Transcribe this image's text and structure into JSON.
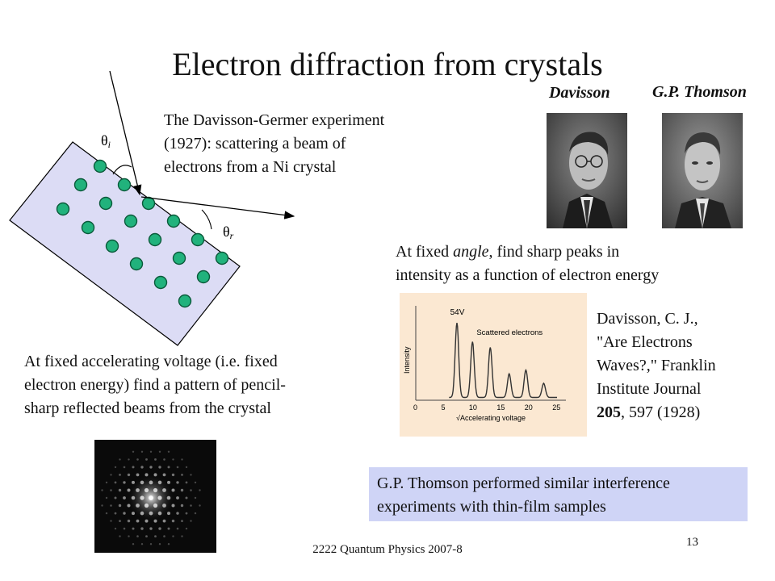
{
  "title": "Electron diffraction from crystals",
  "people": [
    {
      "name": "Davisson",
      "photo_icon": "davisson-portrait"
    },
    {
      "name": "G.P. Thomson",
      "photo_icon": "thomson-portrait"
    }
  ],
  "crystal_diagram": {
    "theta_i_label": "θ",
    "theta_i_sub": "i",
    "theta_r_label": "θ",
    "theta_r_sub": "r"
  },
  "texts": {
    "dg": [
      "The Davisson-Germer experiment",
      "(1927): scattering a beam of",
      "electrons from a Ni crystal"
    ],
    "voltage": [
      "At fixed accelerating voltage (i.e. fixed",
      "electron energy) find a pattern of pencil-",
      "sharp reflected beams from the crystal"
    ],
    "angle_pre": "At fixed ",
    "angle_italic": "angle",
    "angle_post": ", find sharp peaks in",
    "angle_line2": "intensity as a function of electron energy",
    "ref": {
      "line1": "Davisson, C. J.,",
      "line2": "\"Are Electrons",
      "line3": "Waves?,\" Franklin",
      "line4": "Institute Journal",
      "volume": "205",
      "rest": ", 597 (1928)"
    },
    "thomson": [
      "G.P. Thomson performed similar interference",
      "experiments with thin-film samples"
    ]
  },
  "chart_data": {
    "type": "line",
    "title": "",
    "xlabel": "√Accelerating voltage",
    "ylabel": "Intensity",
    "xlim": [
      0,
      27
    ],
    "ylim": [
      0,
      1
    ],
    "x_ticks": [
      "0",
      "5",
      "10",
      "15",
      "20",
      "25"
    ],
    "annotations": [
      {
        "text": "54V",
        "x": 7.35
      },
      {
        "text": "Scattered electrons",
        "x": 15
      }
    ],
    "series": [
      {
        "peaks": [
          {
            "x": 7.4,
            "y": 0.82
          },
          {
            "x": 10.2,
            "y": 0.62
          },
          {
            "x": 13.4,
            "y": 0.56
          },
          {
            "x": 16.8,
            "y": 0.28
          },
          {
            "x": 19.8,
            "y": 0.32
          },
          {
            "x": 23.0,
            "y": 0.18
          }
        ]
      }
    ]
  },
  "footer": "2222 Quantum Physics 2007-8",
  "slide_number": "13"
}
